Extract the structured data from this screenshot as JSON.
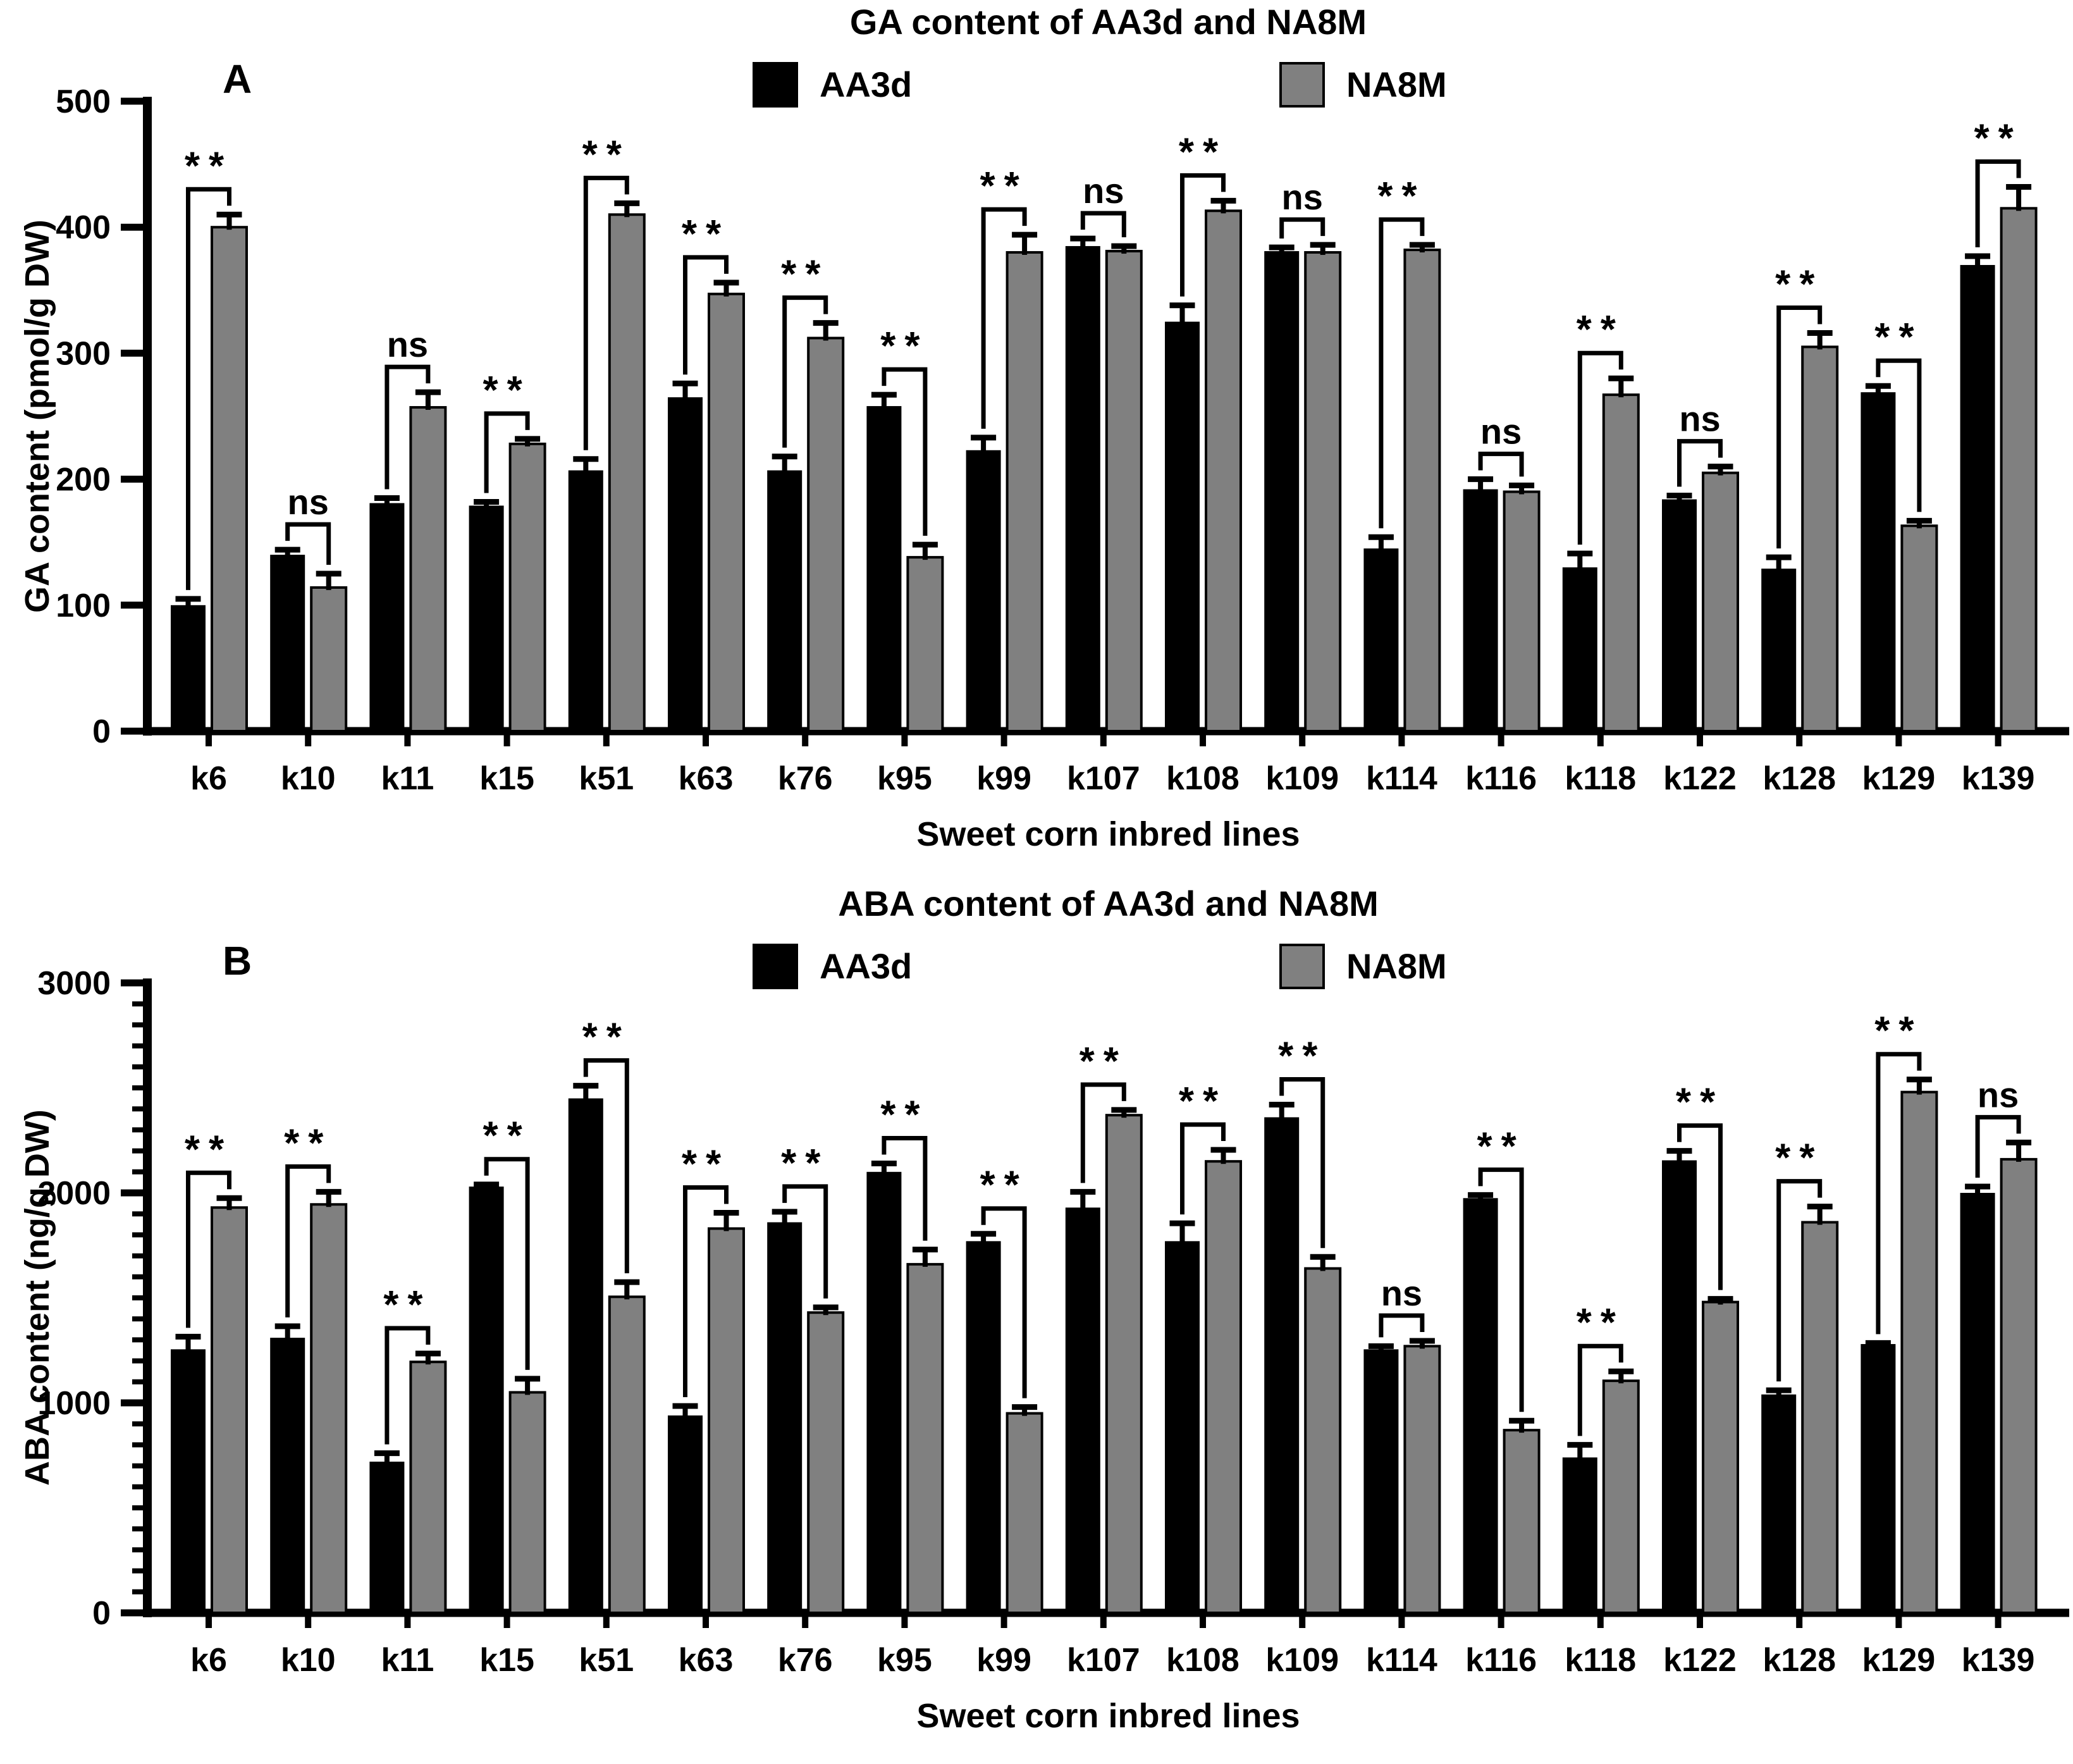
{
  "page": {
    "background": "#ffffff"
  },
  "chart_data": [
    {
      "type": "bar",
      "panel_label": "A",
      "title": "GA content of AA3d and NA8M",
      "xlabel": "Sweet corn inbred lines",
      "ylabel": "GA content (pmol/g DW)",
      "ylim": [
        0,
        500
      ],
      "ytick_step": 100,
      "minor_tick_step": null,
      "grid": false,
      "legend_position": "top",
      "categories": [
        "k6",
        "k10",
        "k11",
        "k15",
        "k51",
        "k63",
        "k76",
        "k95",
        "k99",
        "k107",
        "k108",
        "k109",
        "k114",
        "k116",
        "k118",
        "k122",
        "k128",
        "k129",
        "k139"
      ],
      "series": [
        {
          "name": "AA3d",
          "color": "#000000",
          "values": [
            100,
            140,
            181,
            179,
            207,
            265,
            207,
            258,
            223,
            385,
            325,
            381,
            145,
            192,
            130,
            184,
            129,
            269,
            370
          ],
          "errors": [
            5,
            4,
            4,
            3,
            9,
            11,
            11,
            9,
            10,
            6,
            13,
            3,
            9,
            8,
            11,
            3,
            9,
            5,
            7
          ]
        },
        {
          "name": "NA8M",
          "color": "#808080",
          "values": [
            400,
            114,
            257,
            228,
            410,
            347,
            312,
            138,
            380,
            381,
            413,
            380,
            382,
            190,
            267,
            205,
            305,
            163,
            415
          ],
          "errors": [
            10,
            11,
            12,
            4,
            9,
            9,
            12,
            10,
            14,
            4,
            8,
            6,
            4,
            5,
            13,
            5,
            11,
            4,
            17
          ]
        }
      ],
      "significance": [
        "**",
        "ns",
        "ns",
        "**",
        "**",
        "**",
        "**",
        "**",
        "**",
        "ns",
        "**",
        "ns",
        "**",
        "ns",
        "**",
        "ns",
        "**",
        "**",
        "**"
      ]
    },
    {
      "type": "bar",
      "panel_label": "B",
      "title": "ABA content of AA3d and NA8M",
      "xlabel": "Sweet corn inbred lines",
      "ylabel": "ABA content (ng/g DW)",
      "ylim": [
        0,
        3000
      ],
      "ytick_step": 1000,
      "minor_tick_step": 100,
      "grid": false,
      "legend_position": "top",
      "categories": [
        "k6",
        "k10",
        "k11",
        "k15",
        "k51",
        "k63",
        "k76",
        "k95",
        "k99",
        "k107",
        "k108",
        "k109",
        "k114",
        "k116",
        "k118",
        "k122",
        "k128",
        "k129",
        "k139"
      ],
      "series": [
        {
          "name": "AA3d",
          "color": "#000000",
          "values": [
            1255,
            1310,
            720,
            2030,
            2450,
            940,
            1860,
            2100,
            1770,
            1930,
            1770,
            2360,
            1255,
            1975,
            740,
            2155,
            1040,
            1280,
            2000
          ],
          "errors": [
            60,
            55,
            40,
            10,
            60,
            45,
            50,
            40,
            35,
            75,
            85,
            60,
            15,
            15,
            60,
            45,
            20,
            5,
            30
          ]
        },
        {
          "name": "NA8M",
          "color": "#808080",
          "values": [
            1930,
            1945,
            1195,
            1050,
            1505,
            1830,
            1430,
            1660,
            950,
            2370,
            2150,
            1640,
            1270,
            870,
            1105,
            1480,
            1860,
            2480,
            2160
          ],
          "errors": [
            45,
            60,
            40,
            65,
            70,
            75,
            25,
            70,
            30,
            25,
            55,
            55,
            25,
            45,
            45,
            15,
            75,
            60,
            80
          ]
        }
      ],
      "significance": [
        "**",
        "**",
        "**",
        "**",
        "**",
        "**",
        "**",
        "**",
        "**",
        "**",
        "**",
        "**",
        "ns",
        "**",
        "**",
        "**",
        "**",
        "**",
        "ns"
      ]
    }
  ]
}
